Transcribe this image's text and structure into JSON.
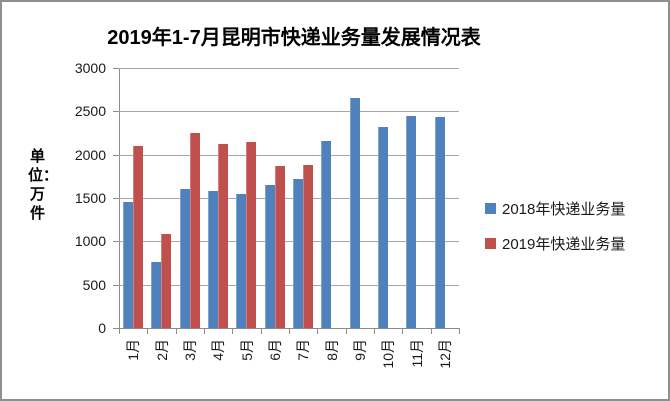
{
  "window": {
    "background": "#ffffff",
    "border_color": "#8f8f8f"
  },
  "chart_data": {
    "type": "bar",
    "title": "2019年1-7月昆明市快递业务量发展情况表",
    "y_axis_title": "单位：万件",
    "xlabel": "",
    "ylabel": "单位：万件",
    "categories": [
      "1月",
      "2月",
      "3月",
      "4月",
      "5月",
      "6月",
      "7月",
      "8月",
      "9月",
      "10月",
      "11月",
      "12月"
    ],
    "series": [
      {
        "name": "2018年快递业务量",
        "color": "#4F81BD",
        "values": [
          1450,
          760,
          1600,
          1580,
          1550,
          1650,
          1720,
          2160,
          2650,
          2320,
          2450,
          2440
        ]
      },
      {
        "name": "2019年快递业务量",
        "color": "#C0504D",
        "values": [
          2100,
          1080,
          2250,
          2120,
          2150,
          1870,
          1880,
          null,
          null,
          null,
          null,
          null
        ]
      }
    ],
    "ylim": [
      0,
      3000
    ],
    "yticks": [
      0,
      500,
      1000,
      1500,
      2000,
      2500,
      3000
    ],
    "grid": "horizontal",
    "gridline_color": "#a6a6a6",
    "axis_color": "#8c8c8c",
    "legend_position": "right"
  }
}
